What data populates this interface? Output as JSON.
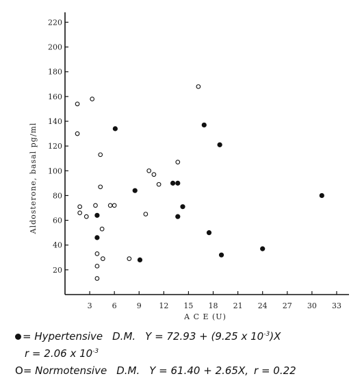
{
  "chart_data": {
    "type": "scatter",
    "xlabel": "A C E (U)",
    "ylabel": "Aldosterone, basal pg/ml",
    "x_ticks": [
      3,
      6,
      9,
      12,
      15,
      18,
      21,
      24,
      27,
      30,
      33
    ],
    "y_ticks": [
      20,
      40,
      60,
      80,
      100,
      120,
      140,
      160,
      180,
      200,
      220
    ],
    "xlim": [
      0,
      34.5
    ],
    "ylim": [
      0,
      228
    ],
    "grid": false,
    "series": [
      {
        "name": "Hypertensive D.M.",
        "marker": "filled",
        "points": [
          [
            3.9,
            64
          ],
          [
            3.9,
            46
          ],
          [
            6.1,
            134
          ],
          [
            8.5,
            84
          ],
          [
            9.1,
            28
          ],
          [
            13.1,
            90
          ],
          [
            13.7,
            90
          ],
          [
            13.7,
            63
          ],
          [
            14.3,
            71
          ],
          [
            16.9,
            137
          ],
          [
            17.5,
            50
          ],
          [
            18.8,
            121
          ],
          [
            19.0,
            32
          ],
          [
            24.0,
            37
          ],
          [
            31.2,
            80
          ]
        ]
      },
      {
        "name": "Normotensive D.M.",
        "marker": "open",
        "points": [
          [
            1.5,
            154
          ],
          [
            1.5,
            130
          ],
          [
            1.8,
            71
          ],
          [
            1.8,
            66
          ],
          [
            2.6,
            63
          ],
          [
            3.3,
            158
          ],
          [
            3.7,
            72
          ],
          [
            3.9,
            33
          ],
          [
            3.9,
            23
          ],
          [
            3.9,
            13
          ],
          [
            4.3,
            113
          ],
          [
            4.3,
            87
          ],
          [
            4.5,
            53
          ],
          [
            4.6,
            29
          ],
          [
            5.5,
            72
          ],
          [
            6.0,
            72
          ],
          [
            7.8,
            29
          ],
          [
            9.8,
            65
          ],
          [
            10.2,
            100
          ],
          [
            10.8,
            97
          ],
          [
            11.4,
            89
          ],
          [
            13.7,
            107
          ],
          [
            16.2,
            168
          ]
        ]
      }
    ]
  },
  "legend": {
    "hypertensive_label": "= Hypertensive",
    "hypertensive_group": "D.M.",
    "hypertensive_equation": "Y = 72.93 + (9.25 x 10",
    "hypertensive_equation_exp": "-3",
    "hypertensive_equation_end": ")X",
    "hypertensive_r": "r = 2.06 x 10",
    "hypertensive_r_exp": "-3",
    "normotensive_symbol": "O",
    "normotensive_label": "= Normotensive",
    "normotensive_group": "D.M.",
    "normotensive_equation": "Y = 61.40 + 2.65X,",
    "normotensive_r": "r = 0.22"
  }
}
